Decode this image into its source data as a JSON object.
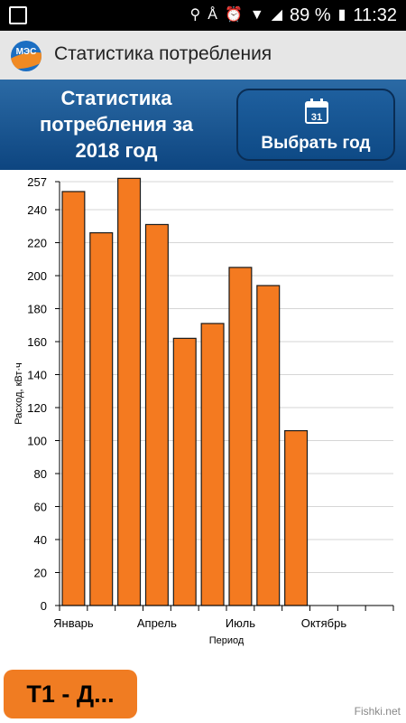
{
  "status_bar": {
    "battery": "89 %",
    "time": "11:32",
    "icons": [
      "location-icon",
      "bluetooth-icon",
      "alarm-icon",
      "wifi-icon",
      "signal-icon",
      "battery-icon"
    ]
  },
  "app_bar": {
    "logo_text": "МЭС",
    "title": "Статистика потребления"
  },
  "header": {
    "title_line1": "Статистика",
    "title_line2": "потребления за",
    "title_line3": "2018 год",
    "year_button_label": "Выбрать год",
    "calendar_day": "31"
  },
  "colors": {
    "bar_fill": "#f47a20",
    "header_blue": "#1a5a98",
    "tariff_button": "#f07c22"
  },
  "chart_data": {
    "type": "bar",
    "xlabel": "Период",
    "ylabel": "Расход, кВт·ч",
    "ylim": [
      0,
      257
    ],
    "yticks": [
      0,
      20,
      40,
      60,
      80,
      100,
      120,
      140,
      160,
      180,
      200,
      220,
      240,
      257
    ],
    "x_tick_labels": [
      {
        "index": 0,
        "label": "Январь"
      },
      {
        "index": 3,
        "label": "Апрель"
      },
      {
        "index": 6,
        "label": "Июль"
      },
      {
        "index": 9,
        "label": "Октябрь"
      }
    ],
    "months": 12,
    "values": [
      251,
      226,
      259,
      231,
      162,
      171,
      205,
      194,
      106,
      null,
      null,
      null
    ],
    "grid": true
  },
  "tariff_button": {
    "label": "Т1 - Д..."
  },
  "watermark": "Fishki.net"
}
